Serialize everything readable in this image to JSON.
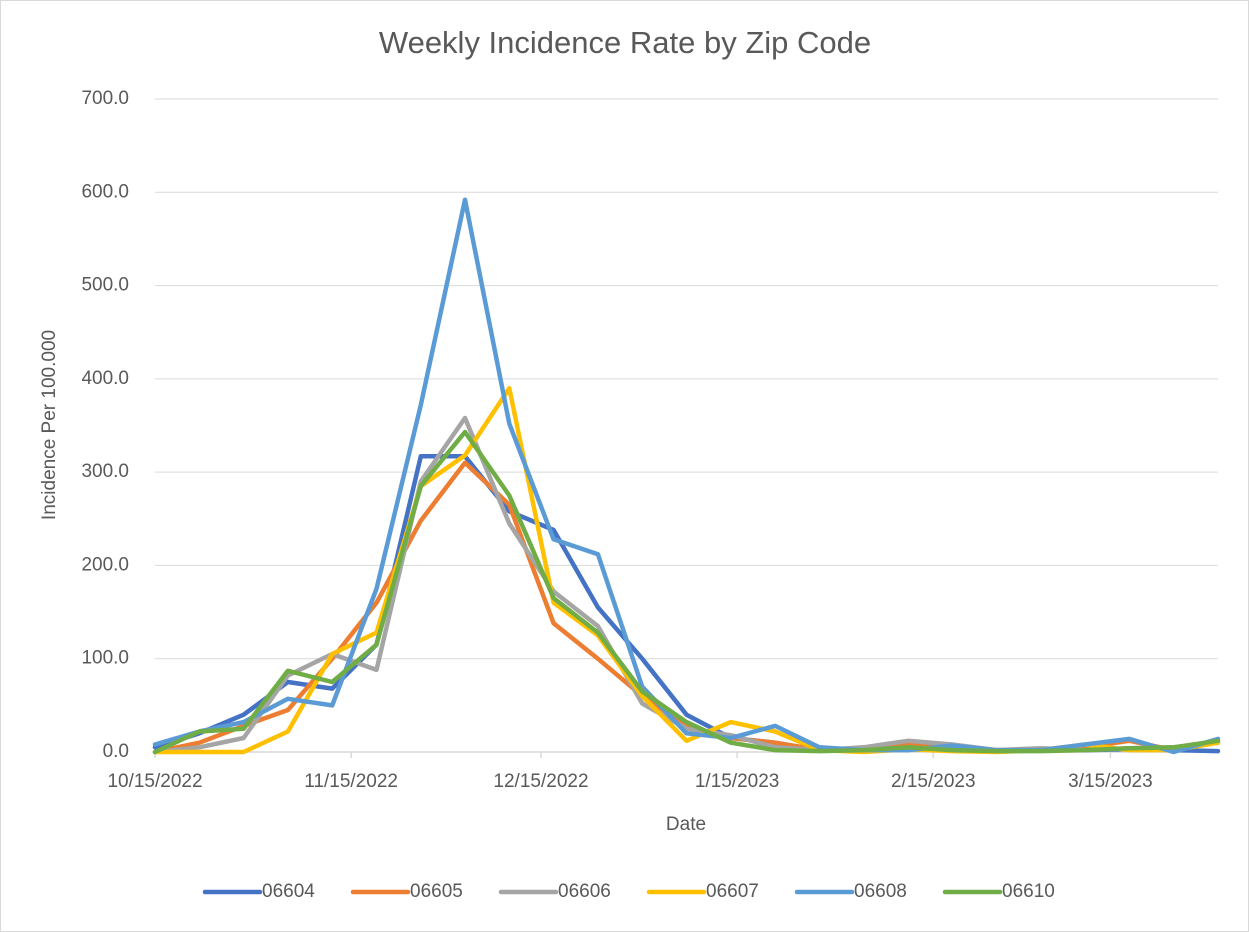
{
  "chart_data": {
    "type": "line",
    "title": "Weekly Incidence Rate by Zip Code",
    "xlabel": "Date",
    "ylabel": "Incidence Per 100.000",
    "x": [
      "10/15/2022",
      "10/22/2022",
      "10/29/2022",
      "11/5/2022",
      "11/12/2022",
      "11/19/2022",
      "11/26/2022",
      "12/3/2022",
      "12/10/2022",
      "12/17/2022",
      "12/24/2022",
      "12/31/2022",
      "1/7/2023",
      "1/14/2023",
      "1/21/2023",
      "1/28/2023",
      "2/4/2023",
      "2/11/2023",
      "2/18/2023",
      "2/25/2023",
      "3/4/2023",
      "3/11/2023",
      "3/18/2023",
      "3/25/2023",
      "4/1/2023"
    ],
    "xlim": [
      "10/15/2022",
      "4/1/2023"
    ],
    "xticks": [
      "10/15/2022",
      "11/15/2022",
      "12/15/2022",
      "1/15/2023",
      "2/15/2023",
      "3/15/2023"
    ],
    "ylim": [
      0,
      700
    ],
    "yticks": [
      {
        "value": 0,
        "label": "0.0"
      },
      {
        "value": 100,
        "label": "100.0"
      },
      {
        "value": 200,
        "label": "200.0"
      },
      {
        "value": 300,
        "label": "300.0"
      },
      {
        "value": 400,
        "label": "400.0"
      },
      {
        "value": 500,
        "label": "500.0"
      },
      {
        "value": 600,
        "label": "600.0"
      },
      {
        "value": 700,
        "label": "700.0"
      }
    ],
    "grid": true,
    "legend": "bottom",
    "series": [
      {
        "name": "06604",
        "color": "#4472c4",
        "values": [
          5,
          20,
          40,
          75,
          68,
          115,
          317,
          317,
          258,
          238,
          155,
          100,
          40,
          15,
          10,
          2,
          2,
          3,
          2,
          1,
          2,
          2,
          3,
          2,
          1
        ]
      },
      {
        "name": "06605",
        "color": "#ed7d31",
        "values": [
          0,
          10,
          28,
          45,
          100,
          160,
          248,
          310,
          265,
          138,
          100,
          60,
          28,
          15,
          10,
          2,
          2,
          8,
          5,
          2,
          2,
          5,
          12,
          2,
          12
        ]
      },
      {
        "name": "06606",
        "color": "#a5a5a5",
        "values": [
          0,
          5,
          15,
          82,
          105,
          88,
          290,
          358,
          245,
          172,
          135,
          52,
          25,
          18,
          5,
          2,
          5,
          12,
          8,
          2,
          4,
          2,
          4,
          5,
          10
        ]
      },
      {
        "name": "06607",
        "color": "#ffc000",
        "values": [
          0,
          0,
          0,
          22,
          105,
          128,
          285,
          318,
          390,
          160,
          125,
          60,
          12,
          32,
          22,
          2,
          0,
          3,
          1,
          0,
          2,
          8,
          2,
          2,
          10
        ]
      },
      {
        "name": "06608",
        "color": "#5b9bd5",
        "values": [
          8,
          22,
          32,
          57,
          50,
          175,
          372,
          592,
          352,
          228,
          212,
          70,
          20,
          15,
          28,
          5,
          2,
          2,
          7,
          2,
          2,
          8,
          14,
          0,
          14
        ]
      },
      {
        "name": "06610",
        "color": "#70ad47",
        "values": [
          0,
          22,
          25,
          87,
          75,
          115,
          285,
          343,
          275,
          165,
          128,
          65,
          32,
          10,
          2,
          1,
          2,
          5,
          2,
          1,
          1,
          2,
          4,
          5,
          12
        ]
      }
    ]
  }
}
